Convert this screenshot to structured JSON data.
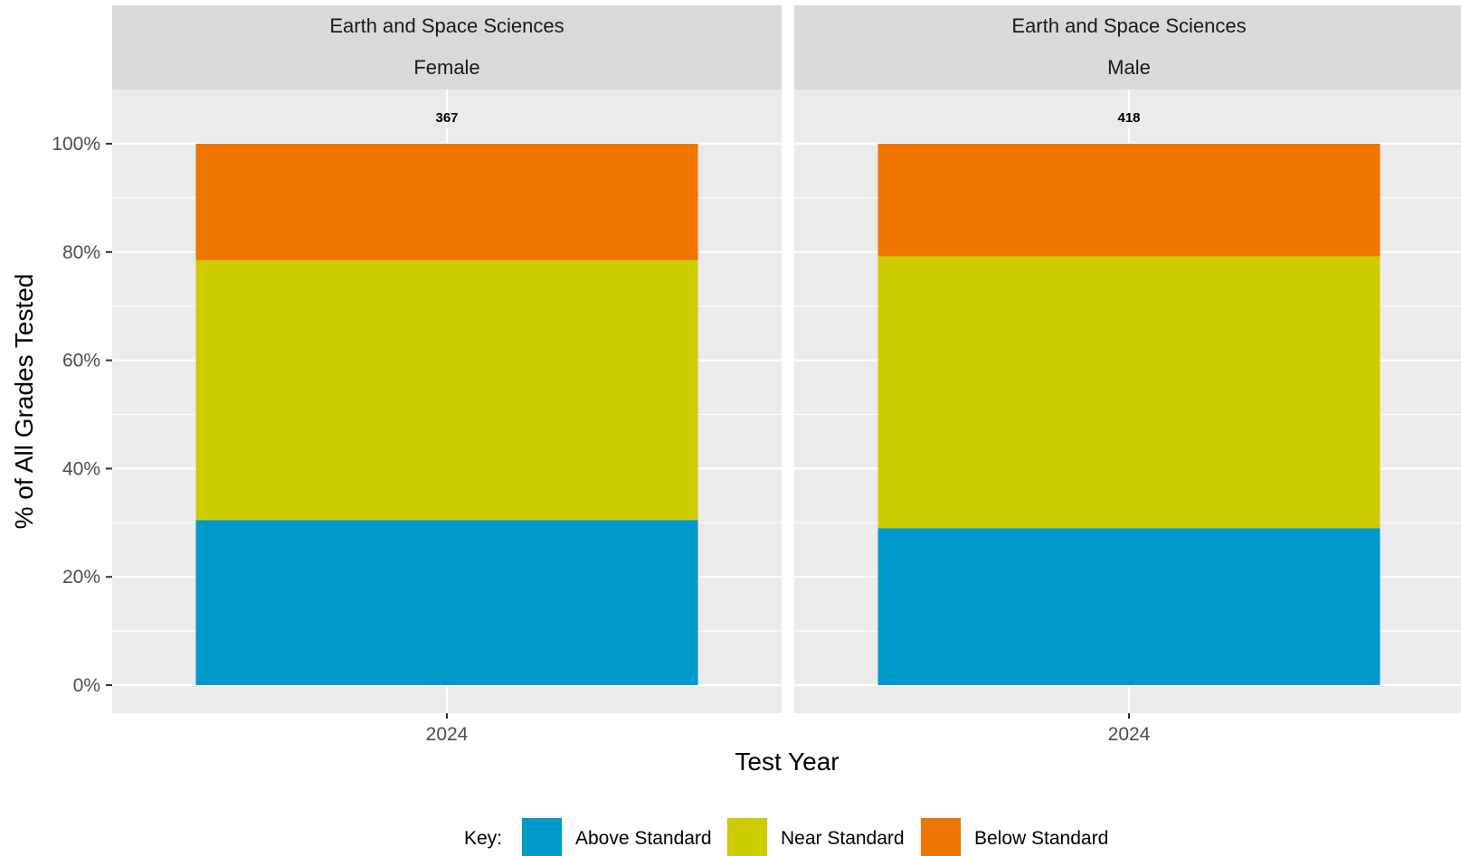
{
  "chart_data": {
    "type": "bar",
    "stacked": true,
    "x_label": "Test Year",
    "y_label": "% of All Grades Tested",
    "ylim": [
      0,
      1
    ],
    "y_ticks": [
      "0%",
      "20%",
      "40%",
      "60%",
      "80%",
      "100%"
    ],
    "grid": true,
    "legend_position": "bottom",
    "legend_title": "Key:",
    "colors": {
      "Above Standard": "#0099cc",
      "Near Standard": "#cccc00",
      "Below Standard": "#ee7600",
      "panel_bg": "#ebebeb",
      "strip_bg": "#d9d9d9",
      "grid": "#ffffff"
    },
    "series_order": [
      "Above Standard",
      "Near Standard",
      "Below Standard"
    ],
    "panels": [
      {
        "strip_top": "Earth and Space Sciences",
        "strip_bottom": "Female",
        "category": "2024",
        "count_label": "367",
        "values": {
          "Above Standard": 0.305,
          "Near Standard": 0.48,
          "Below Standard": 0.215
        }
      },
      {
        "strip_top": "Earth and Space Sciences",
        "strip_bottom": "Male",
        "category": "2024",
        "count_label": "418",
        "values": {
          "Above Standard": 0.29,
          "Near Standard": 0.502,
          "Below Standard": 0.208
        }
      }
    ]
  }
}
